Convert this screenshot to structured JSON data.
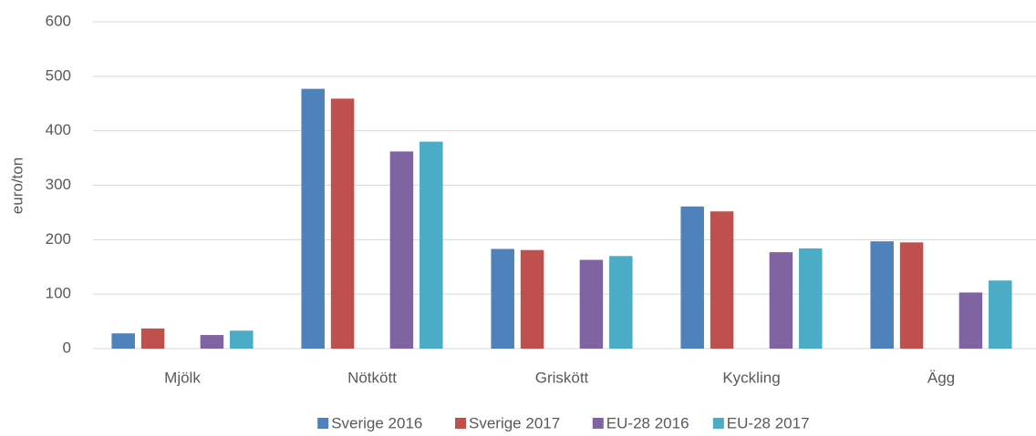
{
  "chart_data": {
    "type": "bar",
    "y_label": "euro/ton",
    "categories": [
      "Mjölk",
      "Nötkött",
      "Griskött",
      "Kyckling",
      "Ägg"
    ],
    "series": [
      {
        "name": "Sverige 2016",
        "color": "#4f81bd",
        "values": [
          28,
          477,
          183,
          261,
          197
        ]
      },
      {
        "name": "Sverige 2017",
        "color": "#c0504d",
        "values": [
          37,
          459,
          181,
          252,
          195
        ]
      },
      {
        "name": "EU-28 2016",
        "color": "#8064a2",
        "values": [
          25,
          362,
          163,
          177,
          103
        ]
      },
      {
        "name": "EU-28 2017",
        "color": "#4bacc6",
        "values": [
          33,
          380,
          170,
          184,
          125
        ]
      }
    ],
    "ylim": [
      0,
      600
    ],
    "yticks": [
      0,
      100,
      200,
      300,
      400,
      500,
      600
    ],
    "grid": true,
    "legend": "bottom"
  }
}
